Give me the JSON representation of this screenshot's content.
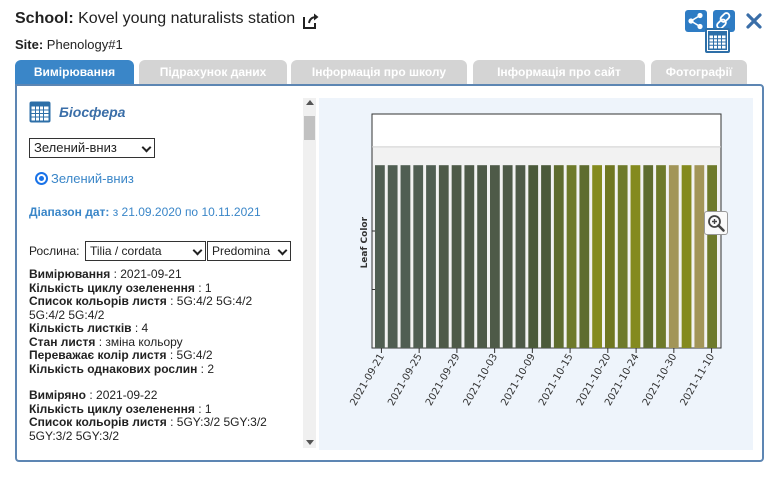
{
  "header": {
    "school_label": "School:",
    "school_name": "Kovel young naturalists station",
    "site_label": "Site:",
    "site_name": "Phenology#1"
  },
  "tabs": [
    {
      "label": "Вимірювання",
      "active": true
    },
    {
      "label": "Підрахунок даних",
      "active": false
    },
    {
      "label": "Інформація про школу",
      "active": false
    },
    {
      "label": "Інформація про сайт",
      "active": false
    },
    {
      "label": "Фотографії",
      "active": false
    }
  ],
  "protocol": {
    "title": "Біосфера",
    "phenophase_select": "Зелений-вниз",
    "radio_label": "Зелений-вниз",
    "range_label": "Діапазон дат:",
    "range_text": " з 21.09.2020 по 10.11.2021"
  },
  "plant": {
    "label": "Рослина:",
    "species": "Tilia / cordata",
    "predominant": "Predomina"
  },
  "records": [
    {
      "lines": [
        {
          "label": "Вимірювання",
          "value": " : 2021-09-21"
        },
        {
          "label": "Кількість циклу озеленення",
          "value": " : 1"
        },
        {
          "label": "Список кольорів листя",
          "value": " : 5G:4/2 5G:4/2"
        },
        {
          "label": "",
          "value": "5G:4/2 5G:4/2"
        },
        {
          "label": "Кількість листків",
          "value": " : 4"
        },
        {
          "label": "Стан листя",
          "value": " : зміна кольору"
        },
        {
          "label": "Переважає колір листя",
          "value": " : 5G:4/2"
        },
        {
          "label": "Кількість однакових рослин",
          "value": " : 2"
        }
      ]
    },
    {
      "lines": [
        {
          "label": "Виміряно",
          "value": " : 2021-09-22"
        },
        {
          "label": "Кількість циклу озеленення",
          "value": " : 1"
        },
        {
          "label": "Список кольорів листя",
          "value": " : 5GY:3/2 5GY:3/2"
        },
        {
          "label": "",
          "value": "5GY:3/2 5GY:3/2"
        }
      ]
    }
  ],
  "colors": {
    "accent": "#3a86c8",
    "panel_border": "#5d86b3",
    "tab_inactive": "#d4d4d4"
  },
  "icons": {
    "external_link": "external-link-icon",
    "share": "share-icon",
    "link": "link-icon",
    "close": "close-icon",
    "table": "table-grid-icon",
    "zoom": "zoom-in-icon"
  },
  "chart_data": {
    "type": "bar",
    "ylabel": "Leaf Color",
    "xlabel": "",
    "x_tick_labels": [
      "2021-09-21",
      "2021-09-25",
      "2021-09-29",
      "2021-10-03",
      "2021-10-09",
      "2021-10-15",
      "2021-10-20",
      "2021-10-24",
      "2021-10-30",
      "2021-11-10"
    ],
    "categories": [
      "b1",
      "b2",
      "b3",
      "b4",
      "b5",
      "b6",
      "b7",
      "b8",
      "b9",
      "b10",
      "b11",
      "b12",
      "b13",
      "b14",
      "b15",
      "b16",
      "b17",
      "b18",
      "b19",
      "b20",
      "b21",
      "b22",
      "b23",
      "b24",
      "b25",
      "b26",
      "b27"
    ],
    "values": [
      1,
      1,
      1,
      1,
      1,
      1,
      1,
      1,
      1,
      1,
      1,
      1,
      1,
      1,
      1,
      1,
      1,
      1,
      1,
      1,
      1,
      1,
      1,
      1,
      1,
      1,
      1
    ],
    "ylim": [
      0,
      1.28
    ],
    "bar_colors": [
      "#505e52",
      "#505e52",
      "#505e52",
      "#505e52",
      "#505e52",
      "#4e5a48",
      "#4e5a48",
      "#4e5a48",
      "#4e5a48",
      "#4e5a48",
      "#4e5a48",
      "#4e5a48",
      "#4b5a3a",
      "#4b5a3a",
      "#5e6c2f",
      "#6e7a2a",
      "#5e6c2f",
      "#848a1e",
      "#6f7621",
      "#6e7a2a",
      "#848a1e",
      "#5e6c2f",
      "#6e7a2a",
      "#a29558",
      "#848a1e",
      "#a29558",
      "#6e7a2a"
    ],
    "grid": true,
    "legend": "none"
  }
}
